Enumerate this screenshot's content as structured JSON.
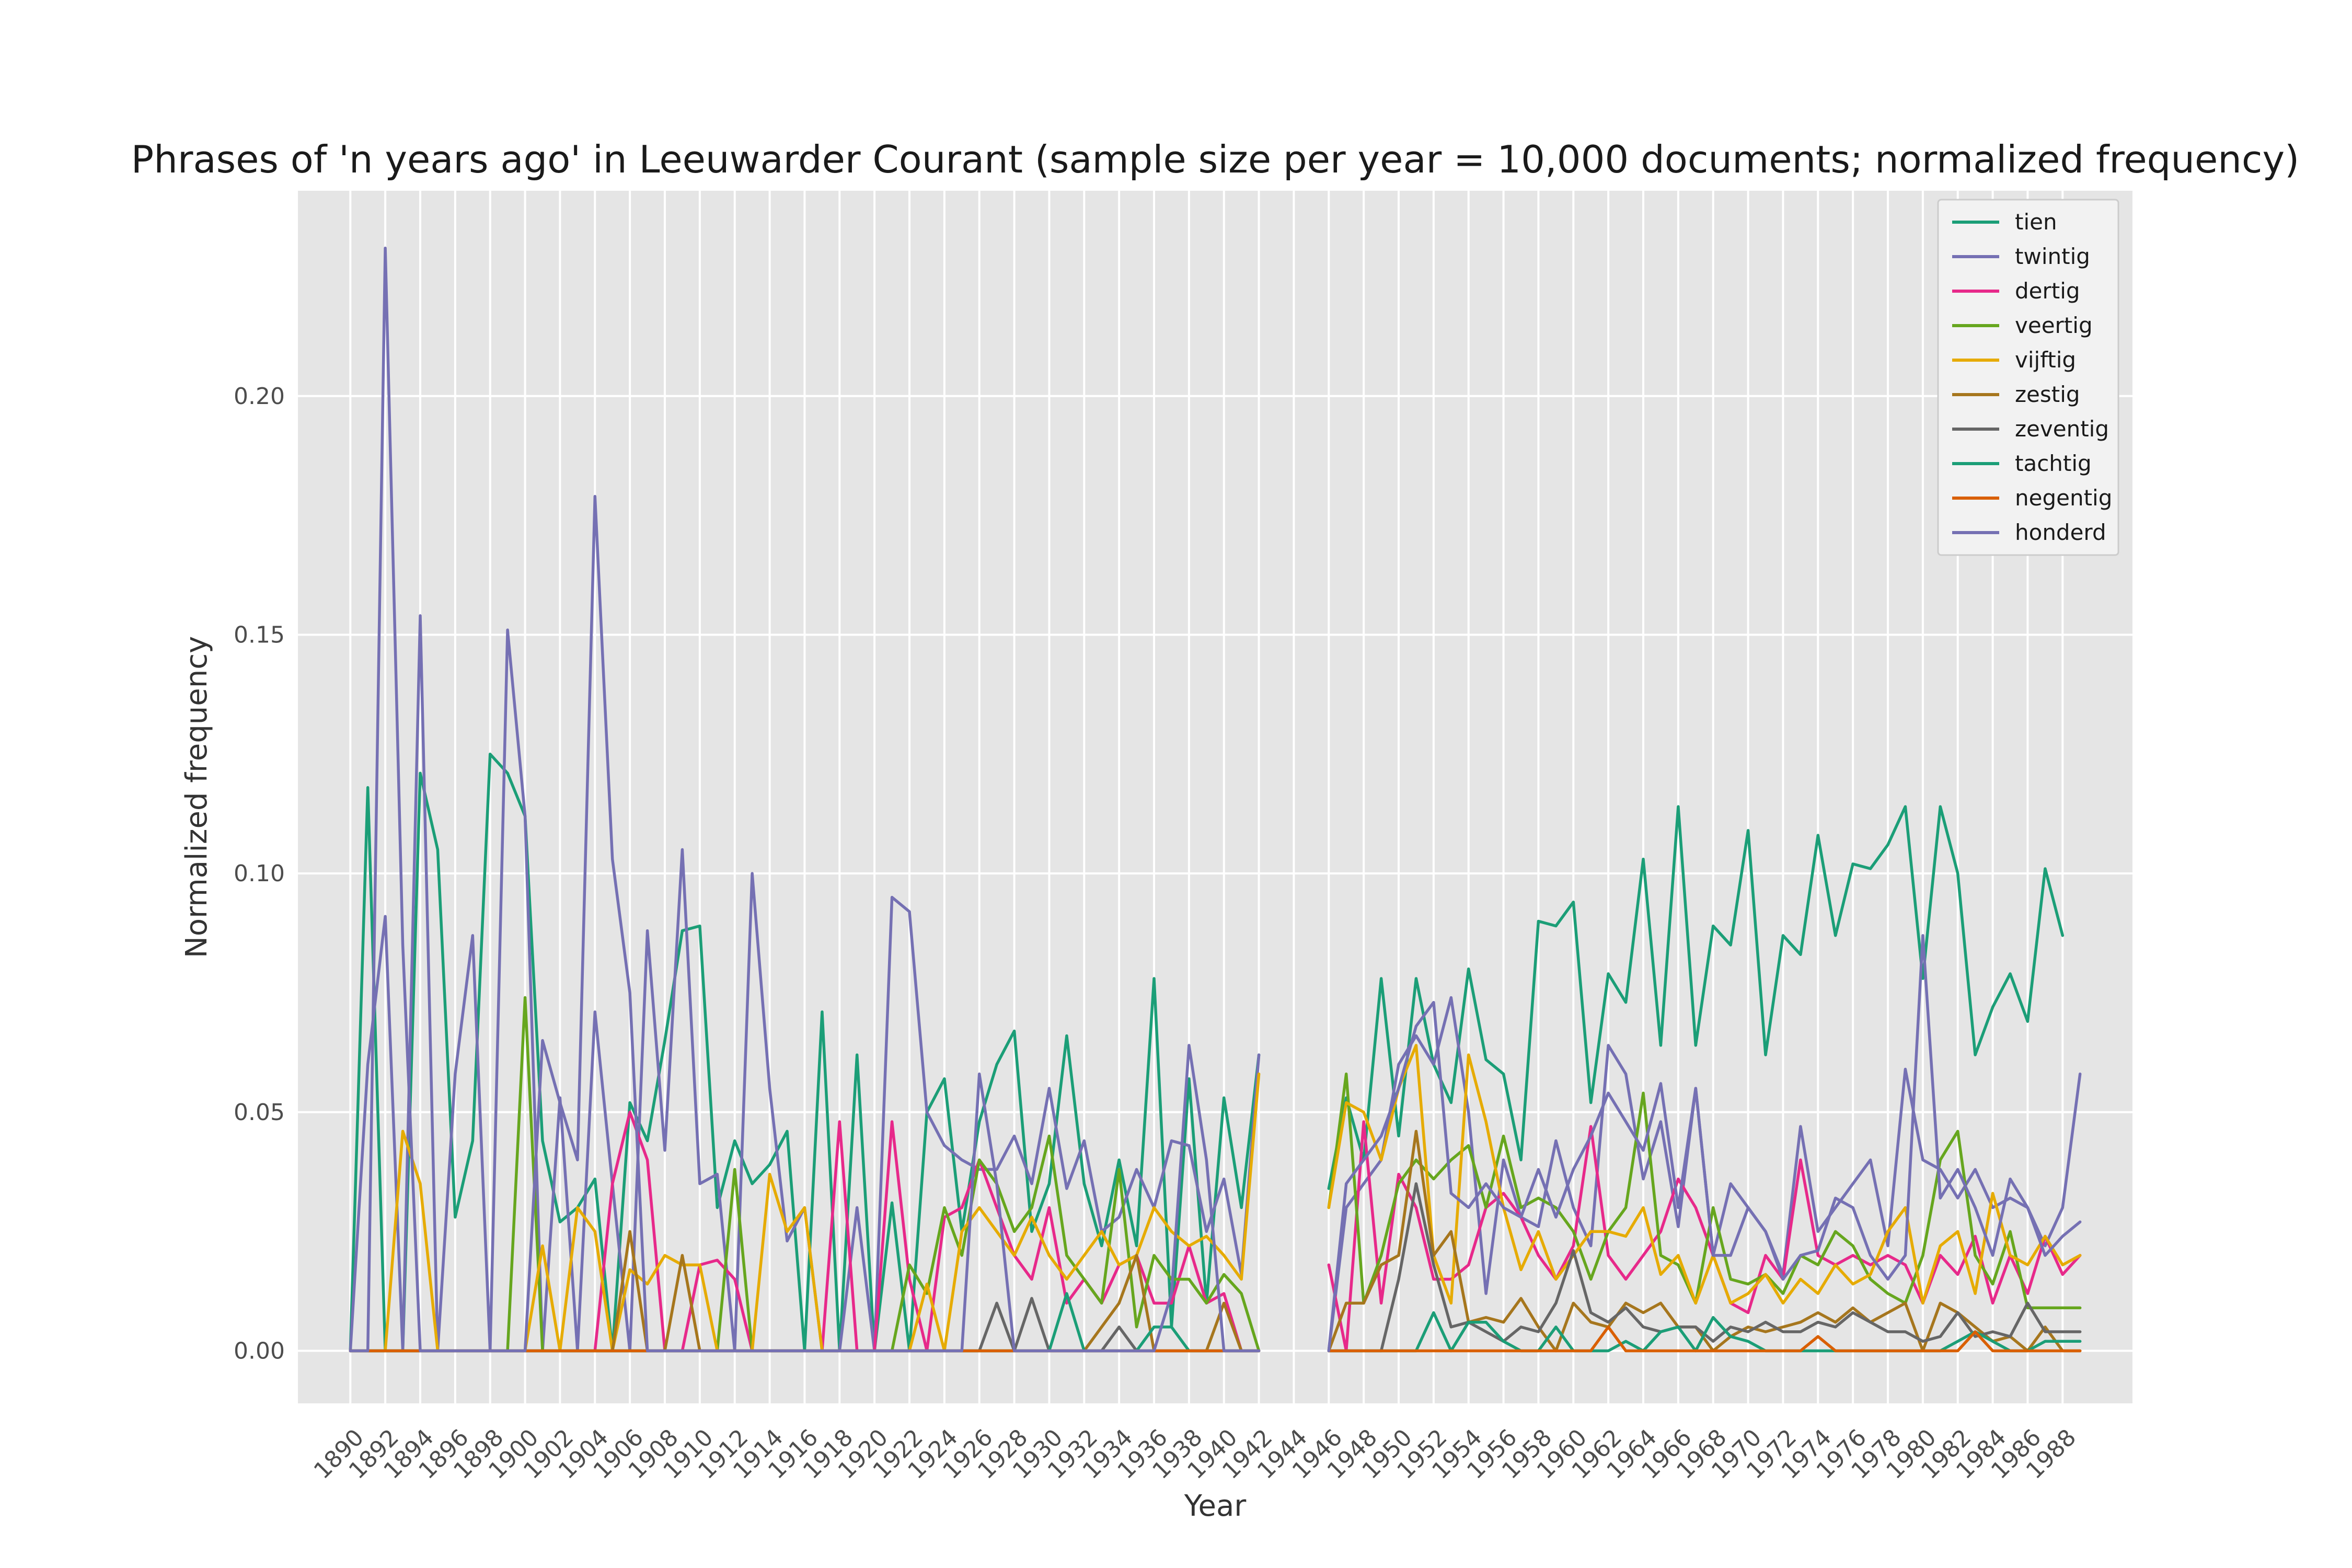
{
  "chart_data": {
    "type": "line",
    "title": "Phrases of 'n years ago' in Leeuwarder Courant (sample size per year = 10,000 documents; normalized frequency)",
    "xlabel": "Year",
    "ylabel": "Normalized frequency",
    "xlim": [
      1887,
      1992
    ],
    "ylim": [
      -0.011,
      0.243
    ],
    "yticks": [
      0.0,
      0.05,
      0.1,
      0.15,
      0.2
    ],
    "ytick_labels": [
      "0.00",
      "0.05",
      "0.10",
      "0.15",
      "0.20"
    ],
    "xticks": [
      1890,
      1892,
      1894,
      1896,
      1898,
      1900,
      1902,
      1904,
      1906,
      1908,
      1910,
      1912,
      1914,
      1916,
      1918,
      1920,
      1922,
      1924,
      1926,
      1928,
      1930,
      1932,
      1934,
      1936,
      1938,
      1940,
      1942,
      1944,
      1946,
      1948,
      1950,
      1952,
      1954,
      1956,
      1958,
      1960,
      1962,
      1964,
      1966,
      1968,
      1970,
      1972,
      1974,
      1976,
      1978,
      1980,
      1982,
      1984,
      1986,
      1988
    ],
    "xtick_labels": [
      "1890",
      "1892",
      "1894",
      "1896",
      "1898",
      "1900",
      "1902",
      "1904",
      "1906",
      "1908",
      "1910",
      "1912",
      "1914",
      "1916",
      "1918",
      "1920",
      "1922",
      "1924",
      "1926",
      "1928",
      "1930",
      "1932",
      "1934",
      "1936",
      "1938",
      "1940",
      "1942",
      "1944",
      "1946",
      "1948",
      "1950",
      "1952",
      "1954",
      "1956",
      "1958",
      "1960",
      "1962",
      "1964",
      "1966",
      "1968",
      "1970",
      "1972",
      "1974",
      "1976",
      "1978",
      "1980",
      "1982",
      "1984",
      "1986",
      "1988"
    ],
    "grid": true,
    "legend_position": "top-right",
    "gap_years": [
      1943,
      1944,
      1945
    ],
    "series": [
      {
        "name": "tien",
        "color": "#1b9e77",
        "x_start": 1890,
        "values": [
          0,
          0.118,
          0,
          0,
          0.121,
          0.105,
          0.028,
          0.044,
          0.125,
          0.121,
          0.112,
          0.044,
          0.027,
          0.03,
          0.036,
          0,
          0.052,
          0.044,
          0.065,
          0.088,
          0.089,
          0.03,
          0.044,
          0.035,
          0.039,
          0.046,
          0,
          0.071,
          0,
          0.062,
          0,
          0.031,
          0,
          0.05,
          0.057,
          0.025,
          0.048,
          0.06,
          0.067,
          0.025,
          0.035,
          0.066,
          0.035,
          0.022,
          0.04,
          0.022,
          0.078,
          0.005,
          0.057,
          0.01,
          0.053,
          0.03,
          0.062,
          null,
          null,
          null,
          0.034,
          0.053,
          0.04,
          0.078,
          0.045,
          0.078,
          0.06,
          0.052,
          0.08,
          0.061,
          0.058,
          0.04,
          0.09,
          0.089,
          0.094,
          0.052,
          0.079,
          0.073,
          0.103,
          0.064,
          0.114,
          0.064,
          0.089,
          0.085,
          0.109,
          0.062,
          0.087,
          0.083,
          0.108,
          0.087,
          0.102,
          0.101,
          0.106,
          0.114,
          0.078,
          0.114,
          0.1,
          0.062,
          0.072,
          0.079,
          0.069,
          0.101,
          0.087
        ]
      },
      {
        "name": "twintig",
        "color": "#7570b3",
        "x_start": 1890,
        "values": [
          0,
          0.06,
          0.091,
          0,
          0.154,
          0,
          0.058,
          0.087,
          0,
          0.151,
          0.112,
          0,
          0.053,
          0,
          0.071,
          0.035,
          0,
          0.088,
          0.042,
          0.105,
          0.035,
          0.037,
          0,
          0.1,
          0.055,
          0.023,
          0.03,
          0,
          0,
          0.03,
          0,
          0.095,
          0.092,
          0.05,
          0.043,
          0.04,
          0.038,
          0.038,
          0.045,
          0.035,
          0.055,
          0.034,
          0.044,
          0.025,
          0.028,
          0.038,
          0.03,
          0.044,
          0.043,
          0.025,
          0.036,
          0.016,
          0.062,
          null,
          null,
          null,
          0,
          0.03,
          0.035,
          0.04,
          0.06,
          0.066,
          0.06,
          0.074,
          0.05,
          0.012,
          0.04,
          0.028,
          0.026,
          0.044,
          0.03,
          0.022,
          0.064,
          0.058,
          0.036,
          0.048,
          0.026,
          0.055,
          0.02,
          0.035,
          0.03,
          0.025,
          0.016,
          0.047,
          0.025,
          0.03,
          0.035,
          0.04,
          0.022,
          0.059,
          0.04,
          0.038,
          0.032,
          0.038,
          0.03,
          0.032,
          0.03,
          0.022,
          0.03,
          0.058
        ]
      },
      {
        "name": "dertig",
        "color": "#e7298a",
        "x_start": 1890,
        "values": [
          0,
          0,
          0,
          0,
          0,
          0,
          0,
          0,
          0,
          0,
          0,
          0,
          0,
          0,
          0,
          0.035,
          0.05,
          0.04,
          0,
          0,
          0.018,
          0.019,
          0.015,
          0,
          0,
          0,
          0,
          0,
          0.048,
          0,
          0,
          0.048,
          0.015,
          0,
          0.028,
          0.03,
          0.04,
          0.03,
          0.02,
          0.015,
          0.03,
          0.01,
          0.015,
          0.01,
          0.018,
          0.02,
          0.01,
          0.01,
          0.022,
          0.01,
          0.012,
          0,
          0,
          null,
          null,
          null,
          0.018,
          0,
          0.048,
          0.01,
          0.037,
          0.03,
          0.015,
          0.015,
          0.018,
          0.03,
          0.033,
          0.028,
          0.02,
          0.015,
          0.022,
          0.047,
          0.02,
          0.015,
          0.02,
          0.025,
          0.036,
          0.03,
          0.02,
          0.01,
          0.008,
          0.02,
          0.015,
          0.04,
          0.02,
          0.018,
          0.02,
          0.018,
          0.02,
          0.018,
          0.01,
          0.02,
          0.016,
          0.024,
          0.01,
          0.02,
          0.012,
          0.024,
          0.016,
          0.02
        ]
      },
      {
        "name": "veertig",
        "color": "#66a61e",
        "x_start": 1890,
        "values": [
          0,
          0,
          0,
          0,
          0,
          0,
          0,
          0,
          0,
          0,
          0.074,
          0,
          0,
          0,
          0,
          0,
          0,
          0,
          0,
          0,
          0,
          0,
          0.038,
          0,
          0,
          0,
          0,
          0,
          0,
          0,
          0,
          0,
          0.018,
          0.012,
          0.03,
          0.02,
          0.04,
          0.035,
          0.025,
          0.03,
          0.045,
          0.02,
          0.015,
          0.01,
          0.038,
          0.005,
          0.02,
          0.015,
          0.015,
          0.01,
          0.016,
          0.012,
          0,
          null,
          null,
          null,
          0.03,
          0.058,
          0.01,
          0.02,
          0.035,
          0.04,
          0.036,
          0.04,
          0.043,
          0.03,
          0.045,
          0.03,
          0.032,
          0.03,
          0.025,
          0.015,
          0.025,
          0.03,
          0.054,
          0.02,
          0.018,
          0.01,
          0.03,
          0.015,
          0.014,
          0.016,
          0.012,
          0.02,
          0.018,
          0.025,
          0.022,
          0.015,
          0.012,
          0.01,
          0.02,
          0.04,
          0.046,
          0.02,
          0.014,
          0.025,
          0.009,
          0.009,
          0.009,
          0.009
        ]
      },
      {
        "name": "vijftig",
        "color": "#e6ab02",
        "x_start": 1890,
        "values": [
          0,
          0,
          0,
          0.046,
          0.035,
          0,
          0,
          0,
          0,
          0,
          0,
          0.022,
          0,
          0.03,
          0.025,
          0,
          0.017,
          0.014,
          0.02,
          0.018,
          0.018,
          0,
          0,
          0,
          0.037,
          0.025,
          0.03,
          0,
          0,
          0,
          0,
          0,
          0,
          0.014,
          0,
          0.025,
          0.03,
          0.025,
          0.02,
          0.028,
          0.02,
          0.015,
          0.02,
          0.025,
          0.018,
          0.02,
          0.03,
          0.025,
          0.022,
          0.024,
          0.02,
          0.015,
          0.058,
          null,
          null,
          null,
          0.03,
          0.052,
          0.05,
          0.04,
          0.055,
          0.064,
          0.02,
          0.01,
          0.062,
          0.048,
          0.03,
          0.017,
          0.025,
          0.015,
          0.02,
          0.025,
          0.025,
          0.024,
          0.03,
          0.016,
          0.02,
          0.01,
          0.02,
          0.01,
          0.012,
          0.016,
          0.01,
          0.015,
          0.012,
          0.018,
          0.014,
          0.016,
          0.025,
          0.03,
          0.01,
          0.022,
          0.025,
          0.012,
          0.033,
          0.02,
          0.018,
          0.024,
          0.018,
          0.02
        ]
      },
      {
        "name": "zestig",
        "color": "#a6761d",
        "x_start": 1890,
        "values": [
          0,
          0,
          0,
          0,
          0,
          0,
          0,
          0,
          0,
          0,
          0,
          0,
          0,
          0,
          0,
          0,
          0.025,
          0,
          0,
          0.02,
          0,
          0,
          0,
          0,
          0,
          0,
          0,
          0,
          0,
          0,
          0,
          0,
          0,
          0,
          0,
          0,
          0,
          0,
          0,
          0,
          0,
          0,
          0,
          0.005,
          0.01,
          0.02,
          0,
          0,
          0,
          0,
          0.01,
          0,
          0,
          null,
          null,
          null,
          0,
          0.01,
          0.01,
          0.018,
          0.02,
          0.046,
          0.02,
          0.025,
          0.006,
          0.007,
          0.006,
          0.011,
          0.005,
          0,
          0.01,
          0.006,
          0.005,
          0.01,
          0.008,
          0.01,
          0.005,
          0.005,
          0,
          0.003,
          0.005,
          0.004,
          0.005,
          0.006,
          0.008,
          0.006,
          0.009,
          0.006,
          0.008,
          0.01,
          0,
          0.01,
          0.008,
          0.005,
          0.002,
          0.003,
          0,
          0.005,
          0,
          0
        ]
      },
      {
        "name": "zeventig",
        "color": "#666666",
        "x_start": 1890,
        "values": [
          0,
          0,
          0,
          0,
          0,
          0,
          0,
          0,
          0,
          0,
          0,
          0,
          0,
          0,
          0,
          0,
          0,
          0,
          0,
          0,
          0,
          0,
          0,
          0,
          0,
          0,
          0,
          0,
          0,
          0,
          0,
          0,
          0,
          0,
          0,
          0,
          0,
          0.01,
          0,
          0.011,
          0,
          0,
          0,
          0,
          0.005,
          0,
          0,
          0,
          0,
          0,
          0,
          0,
          0,
          null,
          null,
          null,
          0,
          0,
          0,
          0,
          0.015,
          0.035,
          0.018,
          0.005,
          0.006,
          0.004,
          0.002,
          0.005,
          0.004,
          0.01,
          0.021,
          0.008,
          0.006,
          0.009,
          0.005,
          0.004,
          0.005,
          0.005,
          0.002,
          0.005,
          0.004,
          0.006,
          0.004,
          0.004,
          0.006,
          0.005,
          0.008,
          0.006,
          0.004,
          0.004,
          0.002,
          0.003,
          0.008,
          0.003,
          0.004,
          0.003,
          0.01,
          0.004,
          0.004,
          0.004
        ]
      },
      {
        "name": "tachtig",
        "color": "#1b9e77",
        "x_start": 1890,
        "values": [
          0,
          0,
          0,
          0,
          0,
          0,
          0,
          0,
          0,
          0,
          0,
          0,
          0,
          0,
          0,
          0,
          0,
          0,
          0,
          0,
          0,
          0,
          0,
          0,
          0,
          0,
          0,
          0,
          0,
          0,
          0,
          0,
          0,
          0,
          0,
          0,
          0,
          0,
          0,
          0,
          0,
          0.012,
          0,
          0,
          0,
          0,
          0.005,
          0.005,
          0,
          0,
          0,
          0,
          0,
          null,
          null,
          null,
          0,
          0,
          0,
          0,
          0,
          0,
          0.008,
          0,
          0.006,
          0.006,
          0.002,
          0,
          0,
          0.005,
          0,
          0,
          0,
          0.002,
          0,
          0.004,
          0.005,
          0,
          0.007,
          0.003,
          0.002,
          0,
          0,
          0,
          0,
          0,
          0,
          0,
          0,
          0,
          0,
          0,
          0.002,
          0.004,
          0.002,
          0,
          0,
          0.002,
          0.002,
          0.002
        ]
      },
      {
        "name": "negentig",
        "color": "#d95f02",
        "x_start": 1890,
        "values": [
          0,
          0,
          0,
          0,
          0,
          0,
          0,
          0,
          0,
          0,
          0,
          0,
          0,
          0,
          0,
          0,
          0,
          0,
          0,
          0,
          0,
          0,
          0,
          0,
          0,
          0,
          0,
          0,
          0,
          0,
          0,
          0,
          0,
          0,
          0,
          0,
          0,
          0,
          0,
          0,
          0,
          0,
          0,
          0,
          0,
          0,
          0,
          0,
          0,
          0,
          0,
          0,
          0,
          null,
          null,
          null,
          0,
          0,
          0,
          0,
          0,
          0,
          0,
          0,
          0,
          0,
          0,
          0,
          0,
          0,
          0,
          0,
          0.005,
          0,
          0,
          0,
          0,
          0,
          0,
          0,
          0,
          0,
          0,
          0,
          0.003,
          0,
          0,
          0,
          0,
          0,
          0,
          0,
          0,
          0.004,
          0,
          0,
          0,
          0,
          0,
          0
        ]
      },
      {
        "name": "honderd",
        "color": "#7570b3",
        "x_start": 1890,
        "values": [
          0,
          0,
          0.231,
          0.085,
          0,
          0,
          0,
          0,
          0,
          0,
          0,
          0.065,
          0.052,
          0.04,
          0.179,
          0.103,
          0.075,
          0,
          0,
          0,
          0,
          0,
          0,
          0,
          0,
          0,
          0,
          0,
          0,
          0,
          0,
          0,
          0,
          0,
          0,
          0,
          0.058,
          0.035,
          0,
          0,
          0,
          0,
          0,
          0,
          0,
          0,
          0,
          0.012,
          0.064,
          0.04,
          0,
          0,
          0,
          null,
          null,
          null,
          0,
          0.035,
          0.04,
          0.045,
          0.055,
          0.068,
          0.073,
          0.033,
          0.03,
          0.035,
          0.03,
          0.028,
          0.038,
          0.028,
          0.038,
          0.045,
          0.054,
          0.048,
          0.042,
          0.056,
          0.03,
          0.055,
          0.02,
          0.02,
          0.03,
          0.025,
          0.015,
          0.02,
          0.021,
          0.032,
          0.03,
          0.02,
          0.015,
          0.02,
          0.087,
          0.032,
          0.038,
          0.03,
          0.02,
          0.036,
          0.03,
          0.02,
          0.024,
          0.027
        ]
      }
    ]
  }
}
